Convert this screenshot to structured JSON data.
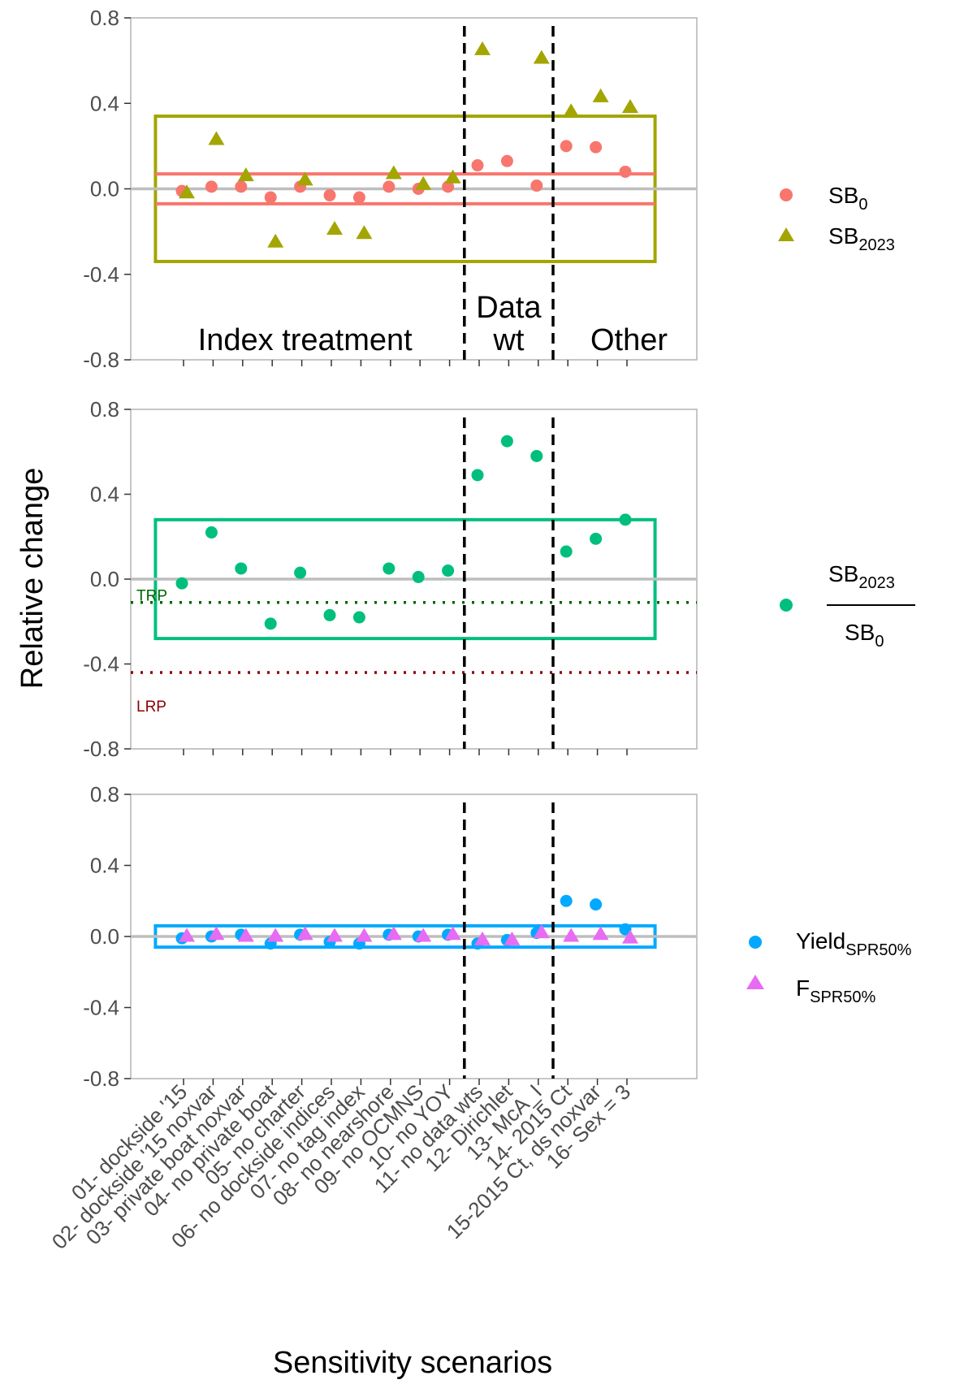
{
  "axes": {
    "y_title": "Relative change",
    "x_title": "Sensitivity scenarios"
  },
  "chart_data": [
    {
      "type": "scatter",
      "panel": "top",
      "categories": [
        "01- dockside '15",
        "02- dockside '15 noxvar",
        "03- private boat noxvar",
        "04- no private boat",
        "05- no charter",
        "06- no dockside indices",
        "07- no tag index",
        "08- no nearshore",
        "09- no OCMNS",
        "10- no YOY",
        "11- no data wts",
        "12- Dirichlet",
        "13- McA_I",
        "14- 2015 Ct",
        "15-2015 Ct, ds noxvar",
        "16- Sex = 3"
      ],
      "ylim": [
        -0.8,
        0.8
      ],
      "yticks": [
        "0.8",
        "0.4",
        "0.0",
        "-0.4",
        "-0.8"
      ],
      "series": [
        {
          "name": "SB",
          "name_sub": "0",
          "shape": "circle",
          "color": "#F8766D",
          "values": [
            -0.01,
            0.01,
            0.01,
            -0.04,
            0.01,
            -0.03,
            -0.04,
            0.01,
            0.0,
            0.01,
            0.11,
            0.13,
            0.015,
            0.2,
            0.195,
            0.08
          ]
        },
        {
          "name": "SB",
          "name_sub": "2023",
          "shape": "triangle",
          "color": "#A3A500",
          "values": [
            -0.02,
            0.23,
            0.06,
            -0.25,
            0.04,
            -0.19,
            -0.21,
            0.07,
            0.02,
            0.05,
            0.65,
            null,
            0.61,
            0.36,
            0.43,
            0.38
          ]
        }
      ],
      "hlines": [
        {
          "y": 0.07,
          "color": "#F8766D"
        },
        {
          "y": -0.07,
          "color": "#F8766D"
        }
      ],
      "band": {
        "ymin": -0.34,
        "ymax": 0.34,
        "color": "#A3A500"
      },
      "regions": [
        {
          "label": "Index treatment"
        },
        {
          "label": "Data",
          "label2": "wt"
        },
        {
          "label": "Other"
        }
      ]
    },
    {
      "type": "scatter",
      "panel": "middle",
      "ylim": [
        -0.8,
        0.8
      ],
      "yticks": [
        "0.8",
        "0.4",
        "0.0",
        "-0.4",
        "-0.8"
      ],
      "series": [
        {
          "name_num": "SB",
          "name_num_sub": "2023",
          "name_den": "SB",
          "name_den_sub": "0",
          "shape": "circle",
          "color": "#00BF7D",
          "values": [
            -0.02,
            0.22,
            0.05,
            -0.21,
            0.03,
            -0.17,
            -0.18,
            0.05,
            0.01,
            0.04,
            0.49,
            0.65,
            0.58,
            0.13,
            0.19,
            0.28
          ]
        }
      ],
      "band": {
        "ymin": -0.28,
        "ymax": 0.28,
        "color": "#00BF7D"
      },
      "ref_lines": [
        {
          "label": "TRP",
          "y": -0.11,
          "color": "#006400"
        },
        {
          "label": "LRP",
          "y": -0.44,
          "color": "#8B0000"
        }
      ]
    },
    {
      "type": "scatter",
      "panel": "bottom",
      "ylim": [
        -0.8,
        0.8
      ],
      "yticks": [
        "0.8",
        "0.4",
        "0.0",
        "-0.4",
        "-0.8"
      ],
      "series": [
        {
          "name": "Yield",
          "name_sub": "SPR50%",
          "shape": "circle",
          "color": "#00A9FF",
          "values": [
            -0.01,
            0.0,
            0.01,
            -0.04,
            0.01,
            -0.03,
            -0.04,
            0.01,
            0.0,
            0.01,
            -0.04,
            -0.02,
            0.02,
            0.2,
            0.18,
            0.04
          ]
        },
        {
          "name": "F",
          "name_sub": "SPR50%",
          "shape": "triangle",
          "color": "#E76BF3",
          "values": [
            0.0,
            0.01,
            0.0,
            0.0,
            0.01,
            0.0,
            0.0,
            0.01,
            0.0,
            0.01,
            -0.02,
            -0.02,
            0.02,
            0.0,
            0.01,
            -0.01
          ]
        }
      ],
      "band": {
        "ymin": -0.06,
        "ymax": 0.06,
        "color": "#00A9FF"
      }
    }
  ]
}
